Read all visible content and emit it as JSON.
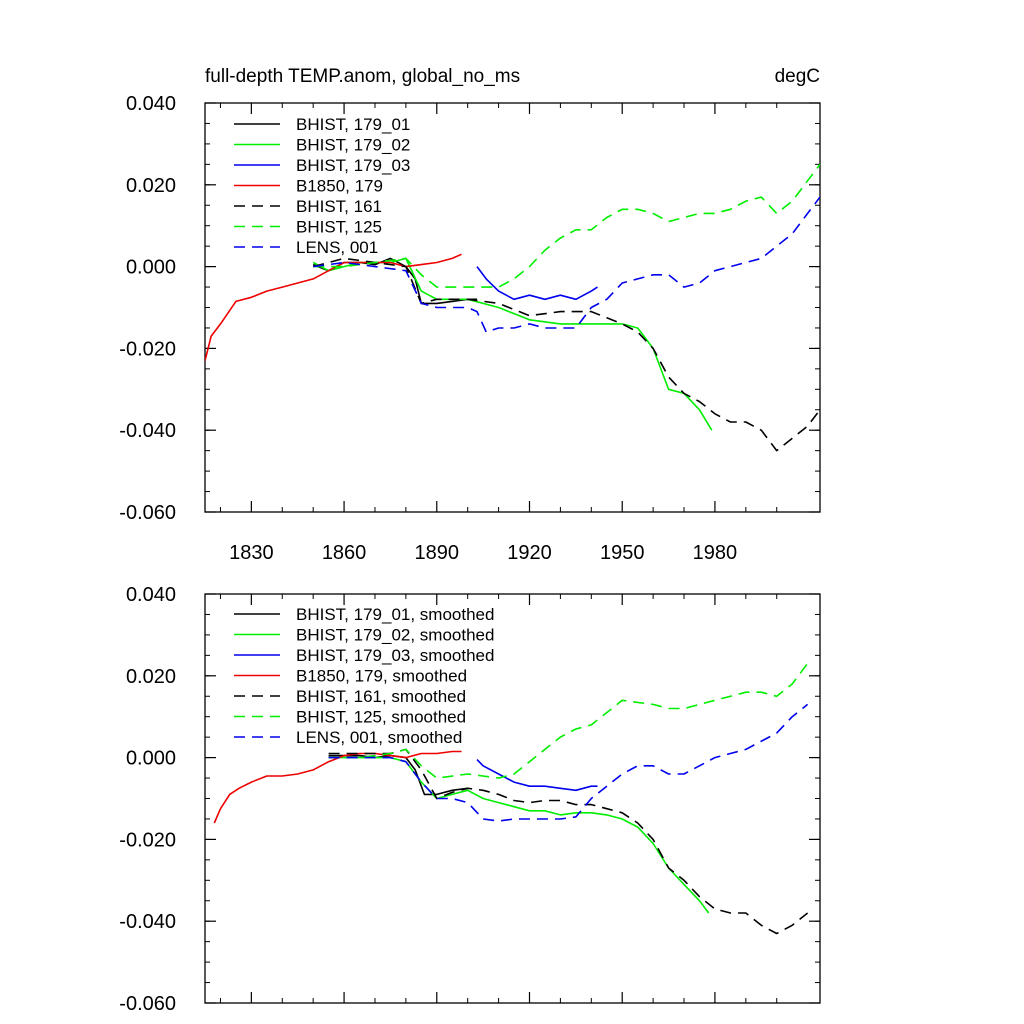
{
  "chart_data": [
    {
      "type": "line",
      "title": "full-depth TEMP.anom, global_no_ms",
      "units": "degC",
      "xlim": [
        1815,
        2014
      ],
      "ylim": [
        -0.06,
        0.04
      ],
      "xticks": [
        1830,
        1860,
        1890,
        1920,
        1950,
        1980
      ],
      "yticks": [
        -0.06,
        -0.04,
        -0.02,
        0.0,
        0.02,
        0.04
      ],
      "ytick_labels": [
        "-0.060",
        "-0.040",
        "-0.020",
        "0.000",
        "0.020",
        "0.040"
      ],
      "legend_position": "top-left",
      "series": [
        {
          "name": "BHIST, 179_01",
          "color": "#000000",
          "dash": "solid",
          "x": [
            1850,
            1855,
            1860,
            1865,
            1870,
            1875,
            1880,
            1883,
            1885,
            1890,
            1895,
            1900,
            1903
          ],
          "y": [
            0.0005,
            -0.001,
            0.001,
            0.001,
            0.0005,
            0.002,
            0.0,
            -0.003,
            -0.009,
            -0.009,
            -0.0085,
            -0.008,
            -0.008
          ]
        },
        {
          "name": "BHIST, 179_02",
          "color": "#00ee00",
          "dash": "solid",
          "x": [
            1850,
            1855,
            1860,
            1865,
            1870,
            1875,
            1880,
            1885,
            1890,
            1900,
            1910,
            1920,
            1930,
            1940,
            1950,
            1955,
            1960,
            1965,
            1970,
            1975,
            1979
          ],
          "y": [
            0.001,
            -0.001,
            0.0,
            0.001,
            0.001,
            0.001,
            0.002,
            -0.006,
            -0.008,
            -0.008,
            -0.01,
            -0.013,
            -0.014,
            -0.014,
            -0.014,
            -0.015,
            -0.02,
            -0.03,
            -0.031,
            -0.035,
            -0.04
          ]
        },
        {
          "name": "BHIST, 179_03",
          "color": "#0000ee",
          "dash": "solid",
          "x": [
            1903,
            1906,
            1910,
            1915,
            1920,
            1925,
            1930,
            1935,
            1940,
            1942
          ],
          "y": [
            0.0,
            -0.003,
            -0.006,
            -0.008,
            -0.007,
            -0.008,
            -0.007,
            -0.008,
            -0.006,
            -0.005
          ]
        },
        {
          "name": "B1850, 179",
          "color": "#ee0000",
          "dash": "solid",
          "x": [
            1815,
            1817,
            1820,
            1825,
            1830,
            1835,
            1840,
            1845,
            1850,
            1855,
            1860,
            1865,
            1870,
            1875,
            1880,
            1885,
            1890,
            1895,
            1898
          ],
          "y": [
            -0.023,
            -0.017,
            -0.014,
            -0.0085,
            -0.0075,
            -0.006,
            -0.005,
            -0.004,
            -0.003,
            -0.001,
            0.001,
            0.001,
            0.001,
            0.001,
            0.0,
            0.0005,
            0.001,
            0.002,
            0.003
          ]
        },
        {
          "name": "BHIST, 161",
          "color": "#000000",
          "dash": "dashed",
          "x": [
            1850,
            1860,
            1870,
            1880,
            1885,
            1890,
            1900,
            1910,
            1920,
            1930,
            1940,
            1950,
            1955,
            1960,
            1965,
            1970,
            1975,
            1980,
            1985,
            1990,
            1995,
            2000,
            2005,
            2010,
            2014
          ],
          "y": [
            0.0,
            0.002,
            0.001,
            0.0,
            -0.009,
            -0.008,
            -0.008,
            -0.009,
            -0.012,
            -0.011,
            -0.011,
            -0.014,
            -0.016,
            -0.02,
            -0.027,
            -0.031,
            -0.033,
            -0.036,
            -0.038,
            -0.038,
            -0.04,
            -0.045,
            -0.042,
            -0.039,
            -0.035
          ]
        },
        {
          "name": "BHIST, 125",
          "color": "#00ee00",
          "dash": "dashed",
          "x": [
            1850,
            1860,
            1870,
            1880,
            1885,
            1890,
            1900,
            1905,
            1910,
            1915,
            1920,
            1925,
            1930,
            1935,
            1940,
            1945,
            1950,
            1955,
            1960,
            1965,
            1970,
            1975,
            1980,
            1985,
            1990,
            1995,
            2000,
            2005,
            2010,
            2014
          ],
          "y": [
            0.0,
            0.0,
            0.001,
            0.002,
            -0.002,
            -0.005,
            -0.005,
            -0.005,
            -0.005,
            -0.003,
            0.0,
            0.004,
            0.007,
            0.009,
            0.009,
            0.012,
            0.014,
            0.014,
            0.013,
            0.011,
            0.012,
            0.013,
            0.013,
            0.014,
            0.016,
            0.017,
            0.013,
            0.016,
            0.021,
            0.025
          ]
        },
        {
          "name": "LENS, 001",
          "color": "#0000ee",
          "dash": "dashed",
          "x": [
            1850,
            1860,
            1870,
            1880,
            1885,
            1890,
            1900,
            1903,
            1906,
            1910,
            1915,
            1920,
            1925,
            1930,
            1935,
            1940,
            1945,
            1950,
            1955,
            1960,
            1965,
            1970,
            1975,
            1980,
            1985,
            1990,
            1995,
            2000,
            2005,
            2010,
            2014
          ],
          "y": [
            0.0,
            0.001,
            0.0,
            -0.001,
            -0.009,
            -0.01,
            -0.01,
            -0.011,
            -0.016,
            -0.015,
            -0.015,
            -0.014,
            -0.015,
            -0.015,
            -0.015,
            -0.01,
            -0.008,
            -0.004,
            -0.003,
            -0.002,
            -0.002,
            -0.005,
            -0.004,
            -0.001,
            0.0,
            0.001,
            0.002,
            0.005,
            0.008,
            0.013,
            0.017
          ]
        }
      ]
    },
    {
      "type": "line",
      "xlim": [
        1815,
        2014
      ],
      "ylim": [
        -0.06,
        0.04
      ],
      "xticks": [
        1830,
        1860,
        1890,
        1920,
        1950,
        1980
      ],
      "yticks": [
        -0.06,
        -0.04,
        -0.02,
        0.0,
        0.02,
        0.04
      ],
      "ytick_labels": [
        "-0.060",
        "-0.040",
        "-0.020",
        "0.000",
        "0.020",
        "0.040"
      ],
      "legend_position": "top-left",
      "series": [
        {
          "name": "BHIST, 179_01, smoothed",
          "color": "#000000",
          "dash": "solid",
          "x": [
            1855,
            1860,
            1865,
            1870,
            1875,
            1880,
            1883,
            1886,
            1890,
            1895,
            1900
          ],
          "y": [
            0.0005,
            0.0005,
            0.0005,
            0.0,
            0.0005,
            0.0,
            -0.003,
            -0.009,
            -0.009,
            -0.008,
            -0.0075
          ]
        },
        {
          "name": "BHIST, 179_02, smoothed",
          "color": "#00ee00",
          "dash": "solid",
          "x": [
            1855,
            1860,
            1865,
            1870,
            1875,
            1880,
            1885,
            1890,
            1895,
            1900,
            1905,
            1910,
            1915,
            1920,
            1925,
            1930,
            1935,
            1940,
            1945,
            1950,
            1955,
            1960,
            1965,
            1970,
            1975,
            1978
          ],
          "y": [
            0.0,
            0.0,
            0.0,
            0.0,
            0.0,
            -0.001,
            -0.006,
            -0.01,
            -0.009,
            -0.008,
            -0.01,
            -0.011,
            -0.012,
            -0.013,
            -0.013,
            -0.014,
            -0.0135,
            -0.0135,
            -0.014,
            -0.015,
            -0.017,
            -0.021,
            -0.027,
            -0.031,
            -0.035,
            -0.038
          ]
        },
        {
          "name": "BHIST, 179_03, smoothed",
          "color": "#0000ee",
          "dash": "solid",
          "x": [
            1903,
            1905,
            1910,
            1915,
            1920,
            1925,
            1930,
            1935,
            1940,
            1942
          ],
          "y": [
            -0.0005,
            -0.002,
            -0.004,
            -0.006,
            -0.007,
            -0.007,
            -0.0075,
            -0.008,
            -0.007,
            -0.007
          ]
        },
        {
          "name": "B1850, 179, smoothed",
          "color": "#ee0000",
          "dash": "solid",
          "x": [
            1818,
            1820,
            1823,
            1826,
            1830,
            1835,
            1840,
            1845,
            1850,
            1855,
            1860,
            1865,
            1870,
            1875,
            1880,
            1885,
            1890,
            1895,
            1898
          ],
          "y": [
            -0.016,
            -0.0125,
            -0.009,
            -0.0075,
            -0.006,
            -0.0045,
            -0.0045,
            -0.004,
            -0.003,
            -0.001,
            0.0005,
            0.001,
            0.001,
            0.0005,
            0.0,
            0.001,
            0.001,
            0.0015,
            0.0015
          ]
        },
        {
          "name": "BHIST, 161, smoothed",
          "color": "#000000",
          "dash": "dashed",
          "x": [
            1855,
            1865,
            1875,
            1880,
            1885,
            1890,
            1895,
            1900,
            1905,
            1910,
            1915,
            1920,
            1925,
            1930,
            1935,
            1940,
            1945,
            1950,
            1955,
            1960,
            1965,
            1970,
            1975,
            1980,
            1985,
            1990,
            1995,
            2000,
            2005,
            2010
          ],
          "y": [
            0.001,
            0.001,
            0.001,
            0.002,
            -0.003,
            -0.01,
            -0.0085,
            -0.0075,
            -0.008,
            -0.009,
            -0.0105,
            -0.011,
            -0.0105,
            -0.0105,
            -0.0115,
            -0.0115,
            -0.0125,
            -0.0135,
            -0.016,
            -0.02,
            -0.027,
            -0.03,
            -0.034,
            -0.037,
            -0.038,
            -0.038,
            -0.041,
            -0.043,
            -0.041,
            -0.038
          ]
        },
        {
          "name": "BHIST, 125, smoothed",
          "color": "#00ee00",
          "dash": "dashed",
          "x": [
            1855,
            1865,
            1875,
            1880,
            1885,
            1890,
            1900,
            1910,
            1915,
            1920,
            1925,
            1930,
            1935,
            1940,
            1945,
            1950,
            1955,
            1960,
            1965,
            1970,
            1975,
            1980,
            1985,
            1990,
            1995,
            2000,
            2005,
            2010
          ],
          "y": [
            0.0,
            0.0,
            0.001,
            0.002,
            -0.002,
            -0.005,
            -0.004,
            -0.005,
            -0.004,
            -0.001,
            0.002,
            0.005,
            0.007,
            0.008,
            0.011,
            0.014,
            0.0135,
            0.013,
            0.012,
            0.012,
            0.013,
            0.014,
            0.015,
            0.016,
            0.016,
            0.015,
            0.018,
            0.023
          ]
        },
        {
          "name": "LENS, 001, smoothed",
          "color": "#0000ee",
          "dash": "dashed",
          "x": [
            1855,
            1865,
            1875,
            1880,
            1885,
            1890,
            1895,
            1900,
            1905,
            1910,
            1915,
            1920,
            1925,
            1930,
            1935,
            1940,
            1945,
            1950,
            1955,
            1960,
            1965,
            1970,
            1975,
            1980,
            1985,
            1990,
            1995,
            2000,
            2005,
            2010
          ],
          "y": [
            0.0,
            0.0,
            0.0,
            -0.001,
            -0.006,
            -0.01,
            -0.01,
            -0.011,
            -0.015,
            -0.0155,
            -0.015,
            -0.015,
            -0.015,
            -0.015,
            -0.0145,
            -0.01,
            -0.007,
            -0.004,
            -0.002,
            -0.002,
            -0.004,
            -0.004,
            -0.002,
            0.0,
            0.001,
            0.002,
            0.004,
            0.006,
            0.01,
            0.013
          ]
        }
      ]
    }
  ]
}
